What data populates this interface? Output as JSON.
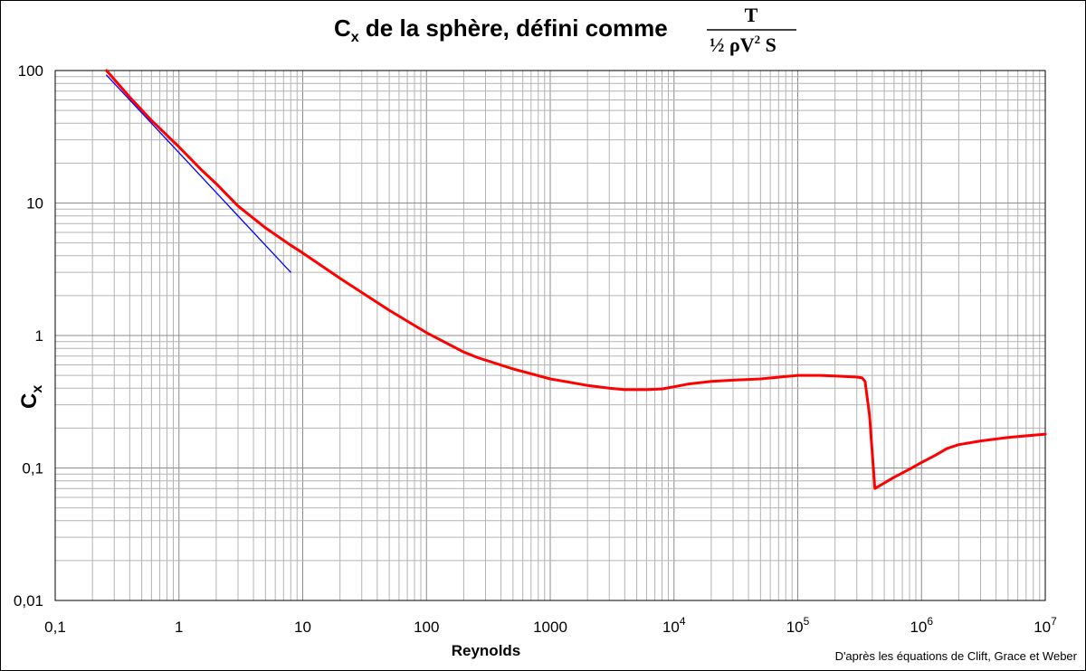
{
  "chart_data": {
    "type": "line",
    "title": {
      "symbol": "C",
      "symbol_sub": "x",
      "text": " de la sphère, défini comme ",
      "fraction_numerator": "T",
      "fraction_denominator_left": "½ ρV",
      "fraction_denominator_sup": "2",
      "fraction_denominator_right": " S"
    },
    "xlabel": "Reynolds",
    "ylabel": "C",
    "ylabel_sub": "x",
    "x_scale": "log",
    "y_scale": "log",
    "xlim": [
      0.1,
      10000000
    ],
    "ylim": [
      0.01,
      100
    ],
    "grid": true,
    "x_ticks": [
      {
        "value": 0.1,
        "label": "0,1"
      },
      {
        "value": 1,
        "label": "1"
      },
      {
        "value": 10,
        "label": "10"
      },
      {
        "value": 100,
        "label": "100"
      },
      {
        "value": 1000,
        "label": "1000"
      },
      {
        "value": 10000,
        "label": "10",
        "sup": "4"
      },
      {
        "value": 100000,
        "label": "10",
        "sup": "5"
      },
      {
        "value": 1000000,
        "label": "10",
        "sup": "6"
      },
      {
        "value": 10000000,
        "label": "10",
        "sup": "7"
      }
    ],
    "y_ticks": [
      {
        "value": 0.01,
        "label": "0,01"
      },
      {
        "value": 0.1,
        "label": "0,1"
      },
      {
        "value": 1,
        "label": "1"
      },
      {
        "value": 10,
        "label": "10"
      },
      {
        "value": 100,
        "label": "100"
      }
    ],
    "series": [
      {
        "color": "#ff0000",
        "x": [
          0.26,
          0.4,
          0.6,
          1,
          1.5,
          2,
          3,
          5,
          8,
          10,
          20,
          50,
          100,
          200,
          260,
          500,
          1000,
          2000,
          3000,
          4000,
          6000,
          8000,
          10000,
          13000,
          20000,
          30000,
          50000,
          80000,
          100000,
          150000,
          200000,
          300000,
          330000,
          350000,
          380000,
          420000,
          600000,
          800000,
          1000000,
          1300000,
          1600000,
          2000000,
          3000000,
          5000000,
          10000000
        ],
        "y": [
          100,
          63,
          42,
          26.5,
          18,
          14,
          9.5,
          6.5,
          4.8,
          4.2,
          2.7,
          1.55,
          1.05,
          0.75,
          0.68,
          0.56,
          0.47,
          0.42,
          0.4,
          0.39,
          0.39,
          0.395,
          0.41,
          0.43,
          0.45,
          0.46,
          0.47,
          0.49,
          0.5,
          0.5,
          0.495,
          0.485,
          0.48,
          0.45,
          0.25,
          0.07,
          0.085,
          0.098,
          0.11,
          0.125,
          0.14,
          0.15,
          0.16,
          0.17,
          0.18
        ]
      },
      {
        "color": "#0000ff",
        "x": [
          0.26,
          8
        ],
        "y": [
          92.3,
          3.0
        ]
      }
    ]
  },
  "credit": "D'après les équations de Clift, Grace et Weber"
}
